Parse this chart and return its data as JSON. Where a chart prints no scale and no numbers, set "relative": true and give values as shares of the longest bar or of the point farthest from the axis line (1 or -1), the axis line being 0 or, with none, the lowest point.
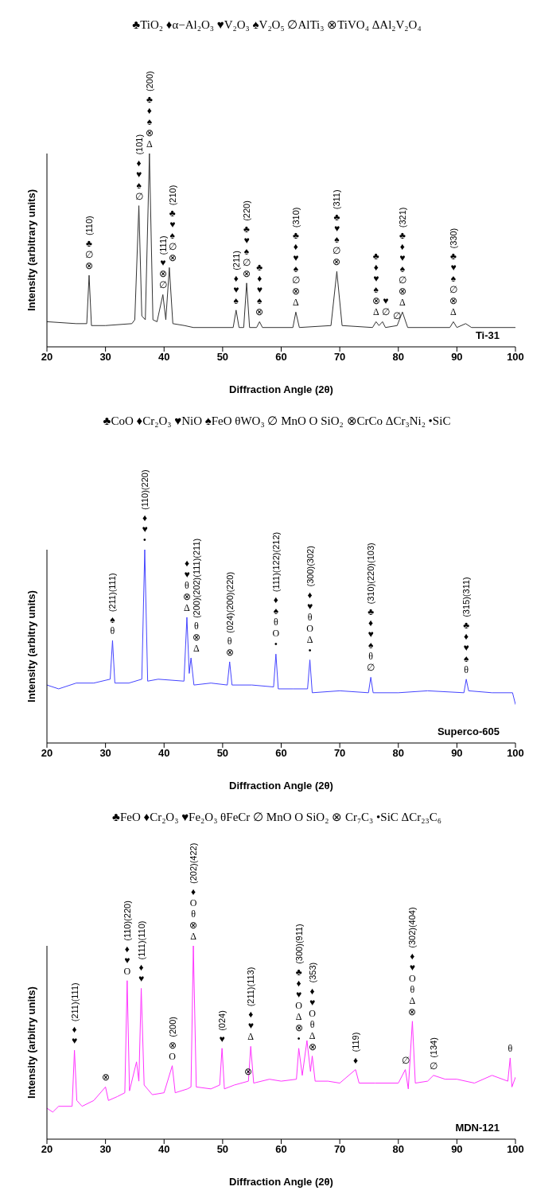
{
  "chart_data": [
    {
      "type": "line",
      "subtitle": "♣TiO₂ ♦α−Al₂O₃ ♥V₂O₃ ♠V₂O₅ ∅AlTi₃ ⊗TiVO₄ ΔAl₂V₂O₄",
      "xlabel": "Diffraction Angle (2θ)",
      "ylabel": "Intensity (arbitrary units)",
      "relative": true,
      "color": "#333333",
      "xlim": [
        20,
        100
      ],
      "xticks": [
        20,
        30,
        40,
        50,
        60,
        70,
        80,
        90,
        100
      ],
      "x": [
        20,
        25,
        26.8,
        27.2,
        27.6,
        30,
        34.5,
        35.0,
        35.7,
        36.2,
        36.8,
        37.5,
        38.1,
        38.8,
        39.8,
        40.3,
        40.9,
        41.5,
        43.5,
        45,
        51.8,
        52.3,
        52.8,
        53.6,
        54.1,
        54.6,
        55.8,
        56.3,
        56.8,
        62,
        62.5,
        63.1,
        68.5,
        69.5,
        70.4,
        75.6,
        76.2,
        76.7,
        77.3,
        77.8,
        79.8,
        80.7,
        81.6,
        88.8,
        89.4,
        90,
        91.5,
        92.5,
        100
      ],
      "values": [
        0.13,
        0.12,
        0.12,
        0.37,
        0.11,
        0.11,
        0.12,
        0.14,
        0.73,
        0.16,
        0.14,
        1.0,
        0.14,
        0.13,
        0.27,
        0.14,
        0.41,
        0.12,
        0.11,
        0.1,
        0.1,
        0.19,
        0.1,
        0.1,
        0.33,
        0.1,
        0.1,
        0.13,
        0.1,
        0.1,
        0.18,
        0.1,
        0.11,
        0.39,
        0.11,
        0.1,
        0.13,
        0.11,
        0.13,
        0.1,
        0.11,
        0.18,
        0.1,
        0.1,
        0.13,
        0.1,
        0.12,
        0.1,
        0.1
      ],
      "annotations": [
        "Ti-31",
        {
          "text": "♣∅⊗",
          "x": 27.2,
          "y": 0.37
        },
        "(110)",
        {
          "text": "♦♥♠∅",
          "x": 35.7,
          "y": 0.73
        },
        "(101)",
        {
          "text": "♣♦♠⊗Δ",
          "x": 37.5,
          "y": 1.0
        },
        "(200)",
        {
          "text": "♥⊗∅",
          "x": 39.8,
          "y": 0.27
        },
        "(111)",
        {
          "text": "♣♥♠∅⊗",
          "x": 40.9,
          "y": 0.41
        },
        "(210)",
        {
          "text": "♦♥♠",
          "x": 52.3,
          "y": 0.19
        },
        "(211)",
        {
          "text": "♣♥♠∅⊗",
          "x": 54.1,
          "y": 0.33
        },
        "(220)",
        {
          "text": "♣♦♥♠⊗",
          "x": 56.3,
          "y": 0.13
        },
        {
          "text": "♣♦♥♠∅⊗Δ",
          "x": 62.5,
          "y": 0.18
        },
        "(310)",
        {
          "text": "♣♥♠∅⊗",
          "x": 69.5,
          "y": 0.39
        },
        "(311)",
        {
          "text": "♣♦♥♠⊗Δ",
          "x": 76.2,
          "y": 0.13
        },
        {
          "text": "♥∅",
          "x": 77.3,
          "y": 0.13
        },
        {
          "text": "∅",
          "x": 79.8,
          "y": 0.11
        },
        {
          "text": "♣♦♥♠∅⊗Δ",
          "x": 80.7,
          "y": 0.18
        },
        "(321)",
        {
          "text": "♣♥♠∅⊗Δ",
          "x": 89.4,
          "y": 0.13
        },
        "(330)"
      ]
    },
    {
      "type": "line",
      "subtitle": "♣CoO ♦Cr₂O₃ ♥NiO ♠FeO θWO₃ ∅ MnO O SiO₂ ⊗CrCo ΔCr₃Ni₂ •SiC",
      "xlabel": "Diffraction Angle (2θ)",
      "ylabel": "Intensity (arbitry units)",
      "relative": true,
      "color": "#4444ff",
      "xlim": [
        20,
        100
      ],
      "xticks": [
        20,
        30,
        40,
        50,
        60,
        70,
        80,
        90,
        100
      ],
      "x": [
        20,
        22,
        25,
        28,
        30.8,
        31.2,
        31.6,
        34,
        36.2,
        36.7,
        37.2,
        39,
        43.4,
        43.9,
        44.3,
        44.6,
        45.1,
        48,
        50.8,
        51.2,
        51.6,
        55,
        58.7,
        59.1,
        59.5,
        62,
        64.5,
        64.9,
        65.3,
        70,
        74.9,
        75.3,
        75.7,
        80,
        85,
        91.2,
        91.6,
        92,
        96,
        99.5,
        100
      ],
      "values": [
        0.3,
        0.28,
        0.31,
        0.31,
        0.33,
        0.53,
        0.31,
        0.31,
        0.33,
        1.0,
        0.32,
        0.33,
        0.32,
        0.65,
        0.36,
        0.44,
        0.3,
        0.31,
        0.3,
        0.42,
        0.3,
        0.3,
        0.29,
        0.46,
        0.28,
        0.28,
        0.28,
        0.43,
        0.26,
        0.27,
        0.26,
        0.34,
        0.26,
        0.26,
        0.27,
        0.26,
        0.33,
        0.27,
        0.26,
        0.26,
        0.2
      ],
      "annotations": [
        "Superco-605",
        {
          "text": "♠θ",
          "x": 31.2,
          "y": 0.53
        },
        "(211)(111)",
        {
          "text": "♦♥•",
          "x": 36.7,
          "y": 1.0
        },
        "(110)(220)",
        {
          "text": "♦♥θ⊗Δ",
          "x": 43.9,
          "y": 0.65
        },
        {
          "text": "θ⊗Δ",
          "x": 44.6,
          "y": 0.44
        },
        "(200)(202)(111)(211)",
        {
          "text": "θ⊗",
          "x": 51.2,
          "y": 0.42
        },
        "(024)(200)(220)",
        {
          "text": "♦♠θO•",
          "x": 59.1,
          "y": 0.46
        },
        "(111)(122)(212)",
        {
          "text": "♦♥θOΔ•",
          "x": 64.9,
          "y": 0.43
        },
        "(300)(302)",
        {
          "text": "♣♦♥♠θ∅",
          "x": 75.3,
          "y": 0.34
        },
        "(310)(220)(103)",
        {
          "text": "♣♦♥♠θ",
          "x": 91.6,
          "y": 0.33
        },
        "(315)(311)"
      ]
    },
    {
      "type": "line",
      "subtitle": "♣FeO ♦Cr₂O₃ ♥Fe₂O₃ θFeCr ∅ MnO O SiO₂ ⊗ Cr₇C₃ •SiC ΔCr₂₃C₆",
      "xlabel": "Diffraction Angle (2θ)",
      "ylabel": "Intensity (arbitry units)",
      "relative": true,
      "color": "#ff33ff",
      "xlim": [
        20,
        100
      ],
      "xticks": [
        20,
        30,
        40,
        50,
        60,
        70,
        80,
        90,
        100
      ],
      "x": [
        20,
        21,
        22,
        24.3,
        24.7,
        25.1,
        26,
        28,
        30,
        30.5,
        32,
        33.3,
        33.7,
        34.1,
        35.3,
        35.7,
        36.1,
        36.6,
        38,
        40,
        41.4,
        41.9,
        44,
        44.6,
        45,
        45.5,
        48,
        49.5,
        49.9,
        50.3,
        52,
        54.4,
        54.8,
        55.3,
        58,
        60,
        62.6,
        63,
        63.6,
        64.4,
        65,
        65.3,
        65.8,
        68,
        70,
        72.7,
        73.3,
        76,
        80,
        81.2,
        81.7,
        82.4,
        82.9,
        85,
        86,
        88,
        90,
        93,
        96,
        98.7,
        99.1,
        99.4,
        100
      ],
      "values": [
        0.16,
        0.14,
        0.17,
        0.17,
        0.46,
        0.2,
        0.17,
        0.2,
        0.27,
        0.2,
        0.22,
        0.24,
        0.82,
        0.25,
        0.4,
        0.3,
        0.78,
        0.28,
        0.23,
        0.24,
        0.38,
        0.24,
        0.26,
        0.27,
        1.0,
        0.27,
        0.26,
        0.28,
        0.47,
        0.26,
        0.28,
        0.3,
        0.48,
        0.29,
        0.31,
        0.3,
        0.31,
        0.47,
        0.33,
        0.51,
        0.35,
        0.43,
        0.3,
        0.3,
        0.29,
        0.36,
        0.29,
        0.29,
        0.29,
        0.36,
        0.26,
        0.61,
        0.29,
        0.3,
        0.33,
        0.31,
        0.31,
        0.29,
        0.33,
        0.3,
        0.42,
        0.27,
        0.32
      ],
      "annotations": [
        "MDN-121",
        {
          "text": "♦♥",
          "x": 24.7,
          "y": 0.46
        },
        "(211)(111)",
        {
          "text": "⊗",
          "x": 30,
          "y": 0.27
        },
        {
          "text": "♦♥O",
          "x": 33.7,
          "y": 0.82
        },
        "(110)(220)",
        {
          "text": "♦♥",
          "x": 36.1,
          "y": 0.78
        },
        "(111)(110)",
        {
          "text": "⊗O",
          "x": 41.4,
          "y": 0.38
        },
        "(200)",
        {
          "text": "♦Oθ⊗Δ",
          "x": 45,
          "y": 1.0
        },
        "(202)(422)",
        {
          "text": "♥",
          "x": 49.9,
          "y": 0.47
        },
        "(024)",
        {
          "text": "⊗",
          "x": 54.4,
          "y": 0.3
        },
        {
          "text": "♦♥Δ",
          "x": 54.8,
          "y": 0.48
        },
        "(211)(113)",
        {
          "text": "♣♦♥OΔ⊗•",
          "x": 63,
          "y": 0.47
        },
        "(300)(911)",
        {
          "text": "♦♥OθΔ⊗",
          "x": 65.3,
          "y": 0.43
        },
        "(353)",
        {
          "text": "♦",
          "x": 72.7,
          "y": 0.36
        },
        "(119)",
        {
          "text": "∅",
          "x": 81.2,
          "y": 0.36
        },
        {
          "text": "♦♥OθΔ⊗",
          "x": 82.4,
          "y": 0.61
        },
        "(302)(404)",
        {
          "text": "∅",
          "x": 86,
          "y": 0.33
        },
        "(134)",
        {
          "text": "θ",
          "x": 99.1,
          "y": 0.42
        }
      ]
    }
  ]
}
